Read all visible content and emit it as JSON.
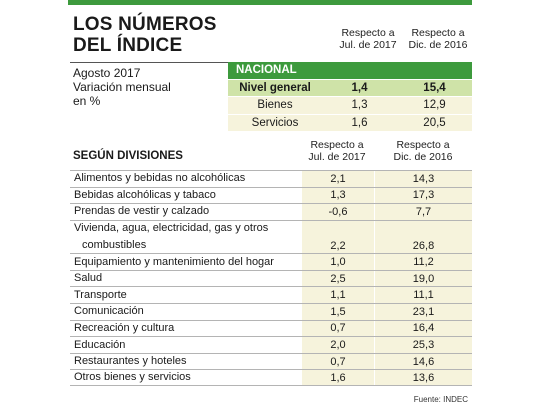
{
  "title": {
    "line1": "LOS NÚMEROS",
    "line2": "DEL ÍNDICE"
  },
  "header": {
    "col1": {
      "line1": "Respecto a",
      "line2": "Jul. de 2017"
    },
    "col2": {
      "line1": "Respecto a",
      "line2": "Dic. de 2016"
    }
  },
  "subtitle": {
    "line1": "Agosto 2017",
    "line2": "Variación mensual",
    "line3": "en %"
  },
  "nacional": {
    "label": "NACIONAL",
    "rows": [
      {
        "label": "Nivel general",
        "v1": "1,4",
        "v2": "15,4"
      },
      {
        "label": "Bienes",
        "v1": "1,3",
        "v2": "12,9"
      },
      {
        "label": "Servicios",
        "v1": "1,6",
        "v2": "20,5"
      }
    ]
  },
  "divisions": {
    "heading": "SEGÚN DIVISIONES",
    "col1": {
      "line1": "Respecto a",
      "line2": "Jul. de 2017"
    },
    "col2": {
      "line1": "Respecto a",
      "line2": "Dic. de 2016"
    },
    "rows": [
      {
        "name": "Alimentos y bebidas no alcohólicas",
        "v1": "2,1",
        "v2": "14,3"
      },
      {
        "name": "Bebidas alcohólicas y tabaco",
        "v1": "1,3",
        "v2": "17,3"
      },
      {
        "name": "Prendas de vestir y calzado",
        "v1": "-0,6",
        "v2": "7,7"
      },
      {
        "name": "Vivienda, agua, electricidad, gas y otros",
        "name2": "combustibles",
        "v1": "2,2",
        "v2": "26,8"
      },
      {
        "name": "Equipamiento y mantenimiento del hogar",
        "v1": "1,0",
        "v2": "11,2"
      },
      {
        "name": "Salud",
        "v1": "2,5",
        "v2": "19,0"
      },
      {
        "name": "Transporte",
        "v1": "1,1",
        "v2": "11,1"
      },
      {
        "name": "Comunicación",
        "v1": "1,5",
        "v2": "23,1"
      },
      {
        "name": "Recreación y cultura",
        "v1": "0,7",
        "v2": "16,4"
      },
      {
        "name": "Educación",
        "v1": "2,0",
        "v2": "25,3"
      },
      {
        "name": "Restaurantes y hoteles",
        "v1": "0,7",
        "v2": "14,6"
      },
      {
        "name": "Otros bienes y servicios",
        "v1": "1,6",
        "v2": "13,6"
      }
    ]
  },
  "source": "Fuente: INDEC",
  "colors": {
    "accent": "#3d9a3d",
    "highlight": "#cfe3a8",
    "cell_bg": "#f6f3dc"
  }
}
